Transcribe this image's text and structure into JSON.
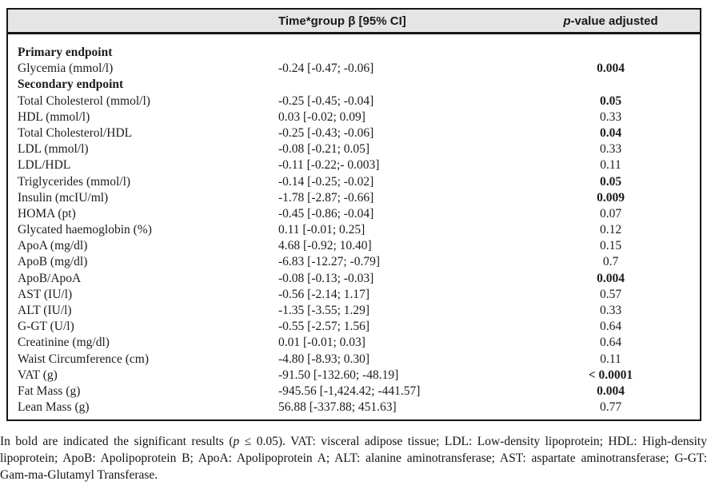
{
  "header": {
    "beta_col": "Time*group β [95% CI]",
    "p_col_italic": "p",
    "p_col_rest": "-value adjusted"
  },
  "rows": [
    {
      "label": "Primary endpoint",
      "beta": "",
      "p": "",
      "section": true,
      "sig": false
    },
    {
      "label": "Glycemia (mmol/l)",
      "beta": "-0.24 [-0.47; -0.06]",
      "p": "0.004",
      "section": false,
      "sig": true
    },
    {
      "label": "Secondary endpoint",
      "beta": "",
      "p": "",
      "section": true,
      "sig": false
    },
    {
      "label": "Total Cholesterol (mmol/l)",
      "beta": "-0.25 [-0.45; -0.04]",
      "p": "0.05",
      "section": false,
      "sig": true
    },
    {
      "label": "HDL (mmol/l)",
      "beta": "0.03 [-0.02; 0.09]",
      "p": "0.33",
      "section": false,
      "sig": false
    },
    {
      "label": "Total Cholesterol/HDL",
      "beta": "-0.25 [-0.43; -0.06]",
      "p": "0.04",
      "section": false,
      "sig": true
    },
    {
      "label": "LDL (mmol/l)",
      "beta": "-0.08 [-0.21; 0.05]",
      "p": "0.33",
      "section": false,
      "sig": false
    },
    {
      "label": "LDL/HDL",
      "beta": "-0.11 [-0.22;- 0.003]",
      "p": "0.11",
      "section": false,
      "sig": false
    },
    {
      "label": "Triglycerides (mmol/l)",
      "beta": "-0.14 [-0.25; -0.02]",
      "p": "0.05",
      "section": false,
      "sig": true
    },
    {
      "label": "Insulin (mcIU/ml)",
      "beta": "-1.78 [-2.87; -0.66]",
      "p": "0.009",
      "section": false,
      "sig": true
    },
    {
      "label": "HOMA (pt)",
      "beta": "-0.45 [-0.86; -0.04]",
      "p": "0.07",
      "section": false,
      "sig": false
    },
    {
      "label": "Glycated haemoglobin (%)",
      "beta": "0.11 [-0.01; 0.25]",
      "p": "0.12",
      "section": false,
      "sig": false
    },
    {
      "label": "ApoA (mg/dl)",
      "beta": "4.68 [-0.92; 10.40]",
      "p": "0.15",
      "section": false,
      "sig": false
    },
    {
      "label": "ApoB (mg/dl)",
      "beta": "-6.83 [-12.27; -0.79]",
      "p": "0.7",
      "section": false,
      "sig": false
    },
    {
      "label": "ApoB/ApoA",
      "beta": "-0.08 [-0.13; -0.03]",
      "p": "0.004",
      "section": false,
      "sig": true
    },
    {
      "label": "AST (IU/l)",
      "beta": "-0.56 [-2.14; 1.17]",
      "p": "0.57",
      "section": false,
      "sig": false
    },
    {
      "label": "ALT (IU/l)",
      "beta": "-1.35 [-3.55; 1.29]",
      "p": "0.33",
      "section": false,
      "sig": false
    },
    {
      "label": "G-GT (U/l)",
      "beta": "-0.55 [-2.57; 1.56]",
      "p": "0.64",
      "section": false,
      "sig": false
    },
    {
      "label": "Creatinine (mg/dl)",
      "beta": "0.01 [-0.01; 0.03]",
      "p": "0.64",
      "section": false,
      "sig": false
    },
    {
      "label": "Waist Circumference (cm)",
      "beta": "-4.80 [-8.93; 0.30]",
      "p": "0.11",
      "section": false,
      "sig": false
    },
    {
      "label": "VAT (g)",
      "beta": "-91.50 [-132.60; -48.19]",
      "p": "< 0.0001",
      "section": false,
      "sig": true
    },
    {
      "label": "Fat Mass (g)",
      "beta": "-945.56 [-1,424.42; -441.57]",
      "p": "0.004",
      "section": false,
      "sig": true
    },
    {
      "label": "Lean Mass (g)",
      "beta": "56.88 [-337.88; 451.63]",
      "p": "0.77",
      "section": false,
      "sig": false
    }
  ],
  "footnote": {
    "part1": "In bold are indicated the significant results (",
    "italic_p": "p",
    "part2": " ≤ 0.05). VAT: visceral adipose tissue; LDL: Low-density lipoprotein; HDL: High-density lipoprotein; ApoB: Apolipoprotein B; ApoA: Apolipoprotein A; ALT: alanine aminotransferase; AST: aspartate aminotransferase; G-GT: Gam-ma-Glutamyl Transferase."
  },
  "colors": {
    "header_bg": "#e5e5e6",
    "border": "#161616",
    "text": "#1c1c1c"
  }
}
